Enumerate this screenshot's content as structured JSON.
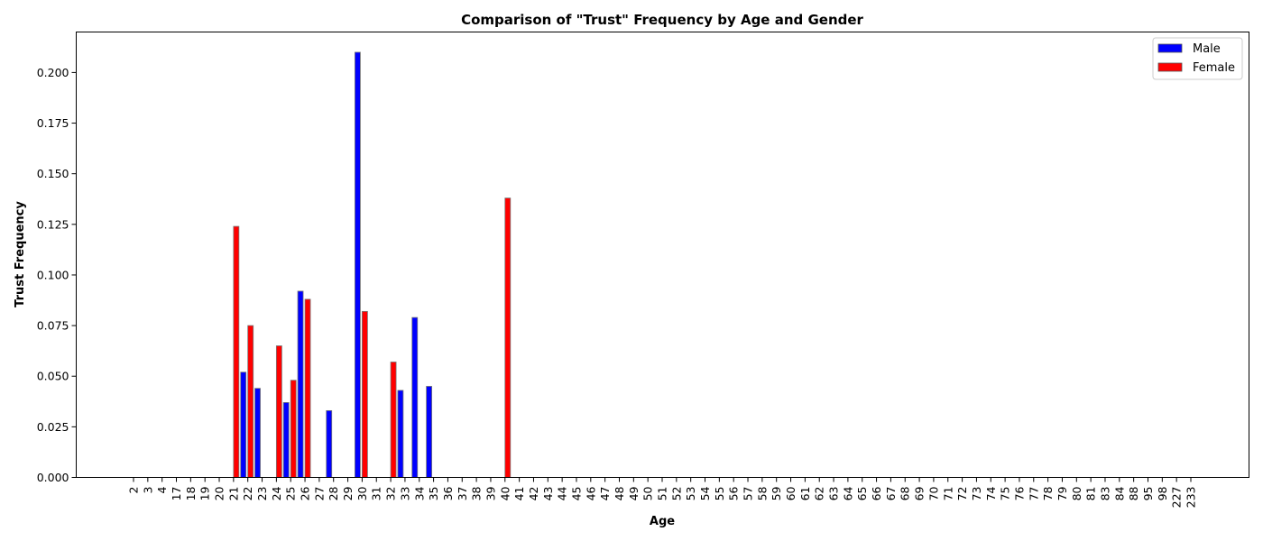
{
  "chart_data": {
    "type": "bar",
    "title": "Comparison of \"Trust\" Frequency by Age and Gender",
    "xlabel": "Age",
    "ylabel": "Trust Frequency",
    "ylim": [
      0,
      0.22
    ],
    "yticks": [
      0.0,
      0.025,
      0.05,
      0.075,
      0.1,
      0.125,
      0.15,
      0.175,
      0.2
    ],
    "ytick_labels": [
      "0.000",
      "0.025",
      "0.050",
      "0.075",
      "0.100",
      "0.125",
      "0.150",
      "0.175",
      "0.200"
    ],
    "grid": false,
    "legend_position": "top-right",
    "categories": [
      "2",
      "3",
      "4",
      "17",
      "18",
      "19",
      "20",
      "21",
      "22",
      "23",
      "24",
      "25",
      "26",
      "27",
      "28",
      "29",
      "30",
      "31",
      "32",
      "33",
      "34",
      "35",
      "36",
      "37",
      "38",
      "39",
      "40",
      "41",
      "42",
      "43",
      "44",
      "45",
      "46",
      "47",
      "48",
      "49",
      "50",
      "51",
      "52",
      "53",
      "54",
      "55",
      "56",
      "57",
      "58",
      "59",
      "60",
      "61",
      "62",
      "63",
      "64",
      "65",
      "66",
      "67",
      "68",
      "69",
      "70",
      "71",
      "72",
      "73",
      "74",
      "75",
      "76",
      "77",
      "78",
      "79",
      "80",
      "81",
      "83",
      "84",
      "88",
      "95",
      "98",
      "227",
      "233"
    ],
    "series": [
      {
        "name": "Male",
        "color": "#0000ff",
        "values": [
          0,
          0,
          0,
          0,
          0,
          0,
          0,
          0,
          0.052,
          0.044,
          0,
          0.037,
          0.092,
          0,
          0.033,
          0,
          0.21,
          0,
          0,
          0.043,
          0.079,
          0.045,
          0,
          0,
          0,
          0,
          0,
          0,
          0,
          0,
          0,
          0,
          0,
          0,
          0,
          0,
          0,
          0,
          0,
          0,
          0,
          0,
          0,
          0,
          0,
          0,
          0,
          0,
          0,
          0,
          0,
          0,
          0,
          0,
          0,
          0,
          0,
          0,
          0,
          0,
          0,
          0,
          0,
          0,
          0,
          0,
          0,
          0,
          0,
          0,
          0,
          0,
          0,
          0,
          0
        ]
      },
      {
        "name": "Female",
        "color": "#ff0000",
        "values": [
          0,
          0,
          0,
          0,
          0,
          0,
          0,
          0.124,
          0.075,
          0,
          0.065,
          0.048,
          0.088,
          0,
          0,
          0,
          0.082,
          0,
          0.057,
          0,
          0,
          0,
          0,
          0,
          0,
          0,
          0.138,
          0,
          0,
          0,
          0,
          0,
          0,
          0,
          0,
          0,
          0,
          0,
          0,
          0,
          0,
          0,
          0,
          0,
          0,
          0,
          0,
          0,
          0,
          0,
          0,
          0,
          0,
          0,
          0,
          0,
          0,
          0,
          0,
          0,
          0,
          0,
          0,
          0,
          0,
          0,
          0,
          0,
          0,
          0,
          0,
          0,
          0,
          0,
          0
        ]
      }
    ]
  }
}
